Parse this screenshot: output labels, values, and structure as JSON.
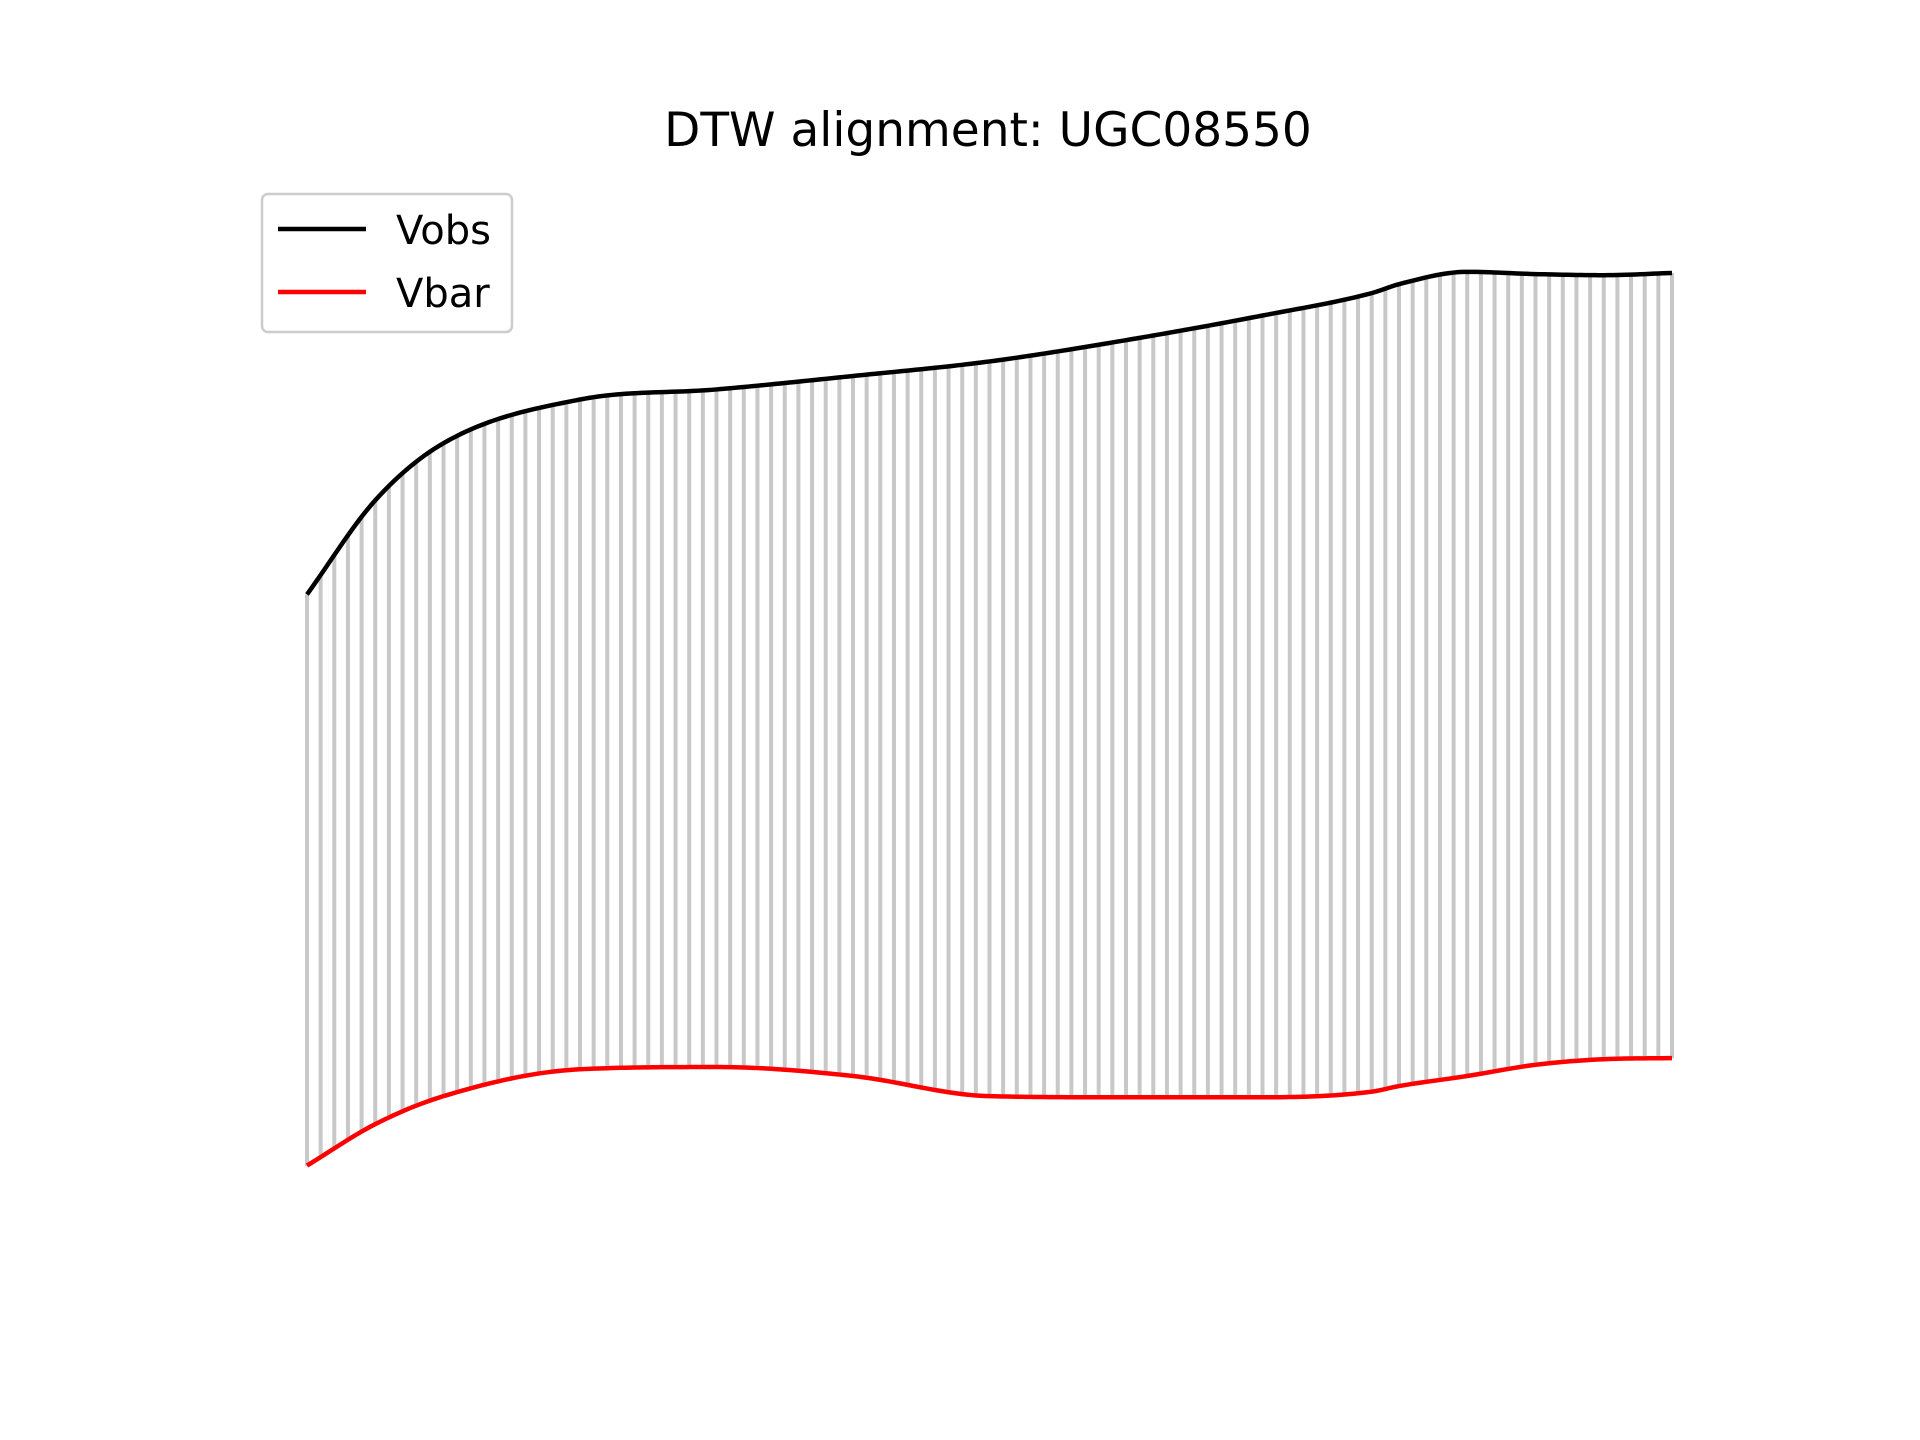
{
  "chart_data": {
    "type": "line",
    "title": "DTW alignment: UGC08550",
    "xlabel": "",
    "ylabel": "",
    "axes_visible": false,
    "grid": false,
    "legend_position": "upper-left",
    "xlim": [
      0,
      1
    ],
    "ylim": [
      0,
      1
    ],
    "x": [
      0.0,
      0.05,
      0.1,
      0.2,
      0.3,
      0.4,
      0.5,
      0.6,
      0.7,
      0.78,
      0.8,
      0.85,
      0.9,
      0.95,
      1.0
    ],
    "series": [
      {
        "name": "Vobs",
        "color": "#000000",
        "values": [
          0.63,
          0.714,
          0.765,
          0.804,
          0.813,
          0.825,
          0.838,
          0.857,
          0.879,
          0.899,
          0.907,
          0.918,
          0.916,
          0.915,
          0.917
        ]
      },
      {
        "name": "Vbar",
        "color": "#ff0000",
        "values": [
          0.12,
          0.157,
          0.182,
          0.206,
          0.208,
          0.2,
          0.182,
          0.181,
          0.181,
          0.186,
          0.191,
          0.2,
          0.21,
          0.215,
          0.216
        ]
      }
    ],
    "alignment": {
      "color": "#c8c8c8",
      "connection_count": 101
    }
  }
}
